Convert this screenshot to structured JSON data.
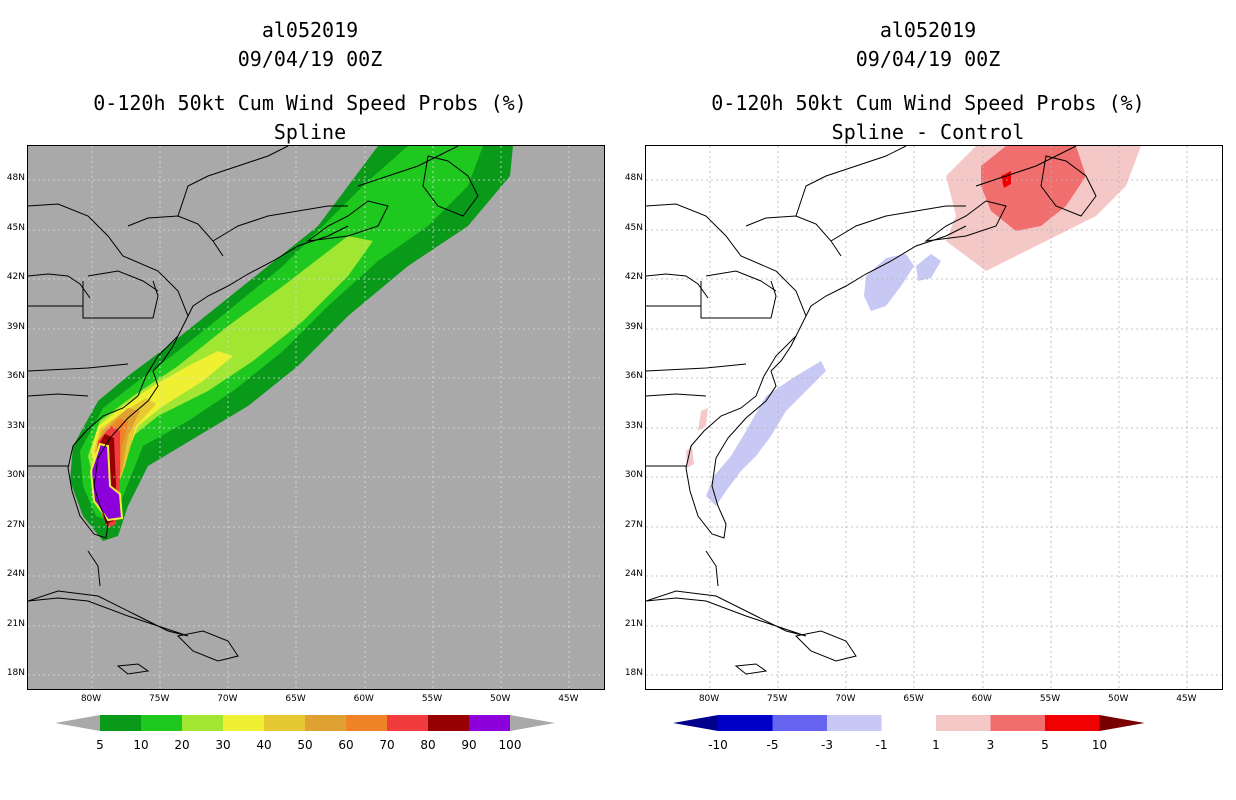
{
  "left_panel": {
    "title_line1": "al052019",
    "title_line2": "09/04/19 00Z",
    "title_line3": "0-120h 50kt Cum Wind Speed Probs (%)",
    "title_line4": "Spline",
    "background_color": "#a9a9a9",
    "colorbar": {
      "colors": [
        "#0a9a1a",
        "#1ec81e",
        "#a0e632",
        "#f0f032",
        "#e6c832",
        "#e1a032",
        "#f08228",
        "#f03c3c",
        "#960000",
        "#8c00dc"
      ],
      "labels": [
        "5",
        "10",
        "20",
        "30",
        "40",
        "50",
        "60",
        "70",
        "80",
        "90",
        "100"
      ]
    }
  },
  "right_panel": {
    "title_line1": "al052019",
    "title_line2": "09/04/19 00Z",
    "title_line3": "0-120h 50kt Cum Wind Speed Probs (%)",
    "title_line4": "Spline - Control",
    "background_color": "#ffffff",
    "colorbar": {
      "colors": [
        "#0000c8",
        "#6464f0",
        "#c8c8f5",
        "#ffffff",
        "#f5c8c8",
        "#f06e6e",
        "#f00000"
      ],
      "labels": [
        "-10",
        "-5",
        "-3",
        "-1",
        "1",
        "3",
        "5",
        "10"
      ]
    }
  },
  "axes": {
    "lat_labels": [
      "48N",
      "45N",
      "42N",
      "39N",
      "36N",
      "33N",
      "30N",
      "27N",
      "24N",
      "21N",
      "18N"
    ],
    "lon_labels": [
      "80W",
      "75W",
      "70W",
      "65W",
      "60W",
      "55W",
      "50W",
      "45W"
    ]
  }
}
